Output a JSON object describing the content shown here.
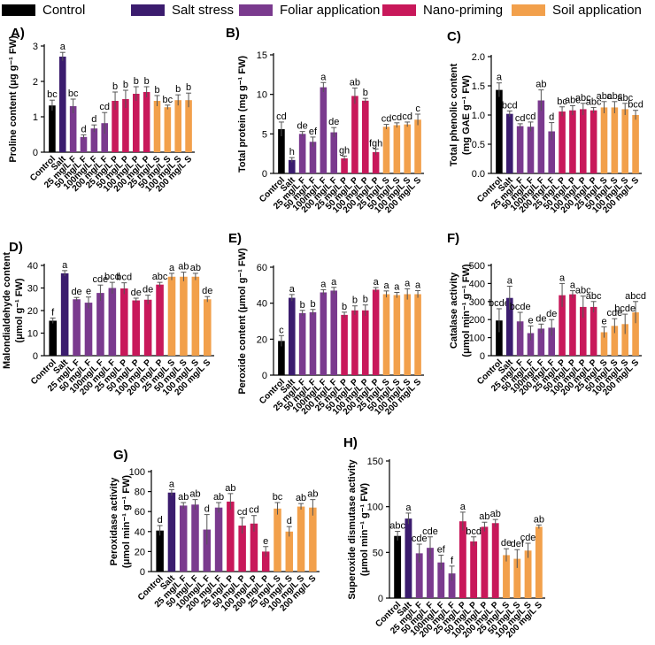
{
  "legend": [
    {
      "label": "Control",
      "color": "#000000"
    },
    {
      "label": "Salt stress",
      "color": "#3b1c6e"
    },
    {
      "label": "Foliar application",
      "color": "#7a3a8e"
    },
    {
      "label": "Nano-priming",
      "color": "#c8185a"
    },
    {
      "label": "Soil application",
      "color": "#f2a04b"
    }
  ],
  "categories": [
    "Control",
    "Salt",
    "25 mg/L F",
    "50 mg/L F",
    "100mg/L F",
    "200 mg/L F",
    "25 mg/L P",
    "50 mg/L P",
    "100 mg/L P",
    "200 mg/L P",
    "25 mg/L S",
    "50 mg/L S",
    "100 mg/L S",
    "200 mg/L S"
  ],
  "colors": [
    "#000000",
    "#3b1c6e",
    "#7a3a8e",
    "#7a3a8e",
    "#7a3a8e",
    "#7a3a8e",
    "#c8185a",
    "#c8185a",
    "#c8185a",
    "#c8185a",
    "#f2a04b",
    "#f2a04b",
    "#f2a04b",
    "#f2a04b"
  ],
  "chart_data": [
    {
      "type": "bar",
      "panel": "A)",
      "ylabel_lines": [
        "Proline content (μg g⁻¹ FW)"
      ],
      "ylim": [
        0,
        3
      ],
      "ticks": [
        0,
        1,
        2,
        3
      ],
      "categories": [
        "Control",
        "Salt",
        "25 mg/L F",
        "50 mg/L F",
        "100mg/L F",
        "200 mg/L F",
        "25 mg/L P",
        "50 mg/L P",
        "100 mg/L P",
        "200 mg/L P",
        "25 mg/L S",
        "50 mg/L S",
        "100 mg/L S",
        "200 mg/L S"
      ],
      "values": [
        1.32,
        2.7,
        1.3,
        0.43,
        0.67,
        0.82,
        1.45,
        1.5,
        1.65,
        1.7,
        1.45,
        1.27,
        1.47,
        1.47
      ],
      "errors": [
        0.15,
        0.12,
        0.2,
        0.06,
        0.1,
        0.3,
        0.25,
        0.25,
        0.2,
        0.15,
        0.15,
        0.06,
        0.15,
        0.2
      ],
      "letters": [
        "bc",
        "a",
        "bc",
        "d",
        "d",
        "cd",
        "b",
        "b",
        "b",
        "b",
        "b",
        "bc",
        "b",
        "b"
      ]
    },
    {
      "type": "bar",
      "panel": "B)",
      "ylabel_lines": [
        "Total protein (mg g⁻¹ FW)"
      ],
      "ylim": [
        0,
        15
      ],
      "ticks": [
        0,
        5,
        10,
        15
      ],
      "categories": [
        "Control",
        "Salt",
        "25 mg/L F",
        "50 mg/L F",
        "100mg/L F",
        "200 mg/L F",
        "25 mg/L P",
        "50 mg/L P",
        "100 mg/L P",
        "200 mg/L P",
        "25 mg/L S",
        "50 mg/L S",
        "100 mg/L S",
        "200 mg/L S"
      ],
      "values": [
        5.6,
        1.7,
        5.0,
        4.0,
        10.9,
        5.2,
        1.9,
        9.8,
        9.2,
        2.7,
        5.9,
        6.1,
        6.2,
        6.8
      ],
      "errors": [
        0.9,
        0.3,
        0.3,
        0.6,
        0.6,
        0.6,
        0.3,
        1.0,
        0.3,
        0.4,
        0.3,
        0.3,
        0.3,
        0.7
      ],
      "letters": [
        "cd",
        "h",
        "de",
        "ef",
        "a",
        "de",
        "gh",
        "ab",
        "b",
        "fgh",
        "cd",
        "cd",
        "cd",
        "c"
      ]
    },
    {
      "type": "bar",
      "panel": "C)",
      "ylabel_lines": [
        "Total phenolic content",
        "(mg GAE g⁻¹ FW)"
      ],
      "ylim": [
        0,
        2
      ],
      "ticks": [
        0,
        0.5,
        1.0,
        1.5,
        2.0
      ],
      "tick_labels": [
        "0.0",
        "0.5",
        "1.0",
        "1.5",
        "2.0"
      ],
      "categories": [
        "Control",
        "Salt",
        "25 mg/L F",
        "50 mg/L F",
        "100mg/L F",
        "200 mg/L F",
        "25 mg/L P",
        "50 mg/L P",
        "100 mg/L P",
        "200 mg/L P",
        "25 mg/L S",
        "50 mg/L S",
        "100 mg/L S",
        "200 mg/L S"
      ],
      "values": [
        1.43,
        1.02,
        0.81,
        0.8,
        1.25,
        0.72,
        1.06,
        1.08,
        1.1,
        1.08,
        1.13,
        1.13,
        1.1,
        1.0
      ],
      "errors": [
        0.12,
        0.05,
        0.04,
        0.08,
        0.18,
        0.15,
        0.08,
        0.08,
        0.1,
        0.05,
        0.1,
        0.1,
        0.1,
        0.08
      ],
      "letters": [
        "a",
        "bcd",
        "cd",
        "cd",
        "ab",
        "d",
        "bc",
        "abc",
        "abc",
        "abc",
        "abc",
        "abc",
        "abc",
        "bcd"
      ]
    },
    {
      "type": "bar",
      "panel": "D)",
      "ylabel_lines": [
        "Malondialdehyde content",
        "(μmol g⁻¹ FW)"
      ],
      "ylim": [
        0,
        40
      ],
      "ticks": [
        0,
        10,
        20,
        30,
        40
      ],
      "categories": [
        "Control",
        "Salt",
        "25 mg/L F",
        "50 mg/L F",
        "100mg/L F",
        "200 mg/L F",
        "25 mg/L P",
        "50 mg/L P",
        "100 mg/L P",
        "200 mg/L P",
        "25 mg/L S",
        "50 mg/L S",
        "100 mg/L S",
        "200 mg/L S"
      ],
      "values": [
        15.5,
        36.5,
        25.0,
        23.5,
        27.8,
        30.0,
        29.8,
        24.5,
        24.8,
        31.5,
        35.0,
        35.0,
        35.0,
        25.0
      ],
      "errors": [
        1.2,
        1.2,
        0.8,
        2.5,
        3.5,
        2.5,
        2.5,
        1.0,
        2.0,
        1.0,
        1.5,
        2.0,
        1.5,
        1.2
      ],
      "letters": [
        "f",
        "a",
        "de",
        "e",
        "cde",
        "bcd",
        "bcd",
        "de",
        "de",
        "abc",
        "a",
        "ab",
        "ab",
        "de"
      ]
    },
    {
      "type": "bar",
      "panel": "E)",
      "ylabel_lines": [
        "Peroxide content (μmol g⁻¹ FW)"
      ],
      "ylim": [
        0,
        60
      ],
      "ticks": [
        0,
        20,
        40,
        60
      ],
      "categories": [
        "Control",
        "Salt",
        "25 mg/L F",
        "50 mg/L F",
        "100mg/L F",
        "200 mg/L F",
        "25 mg/L P",
        "50 mg/L P",
        "100 mg/L P",
        "200 mg/L P",
        "25 mg/L S",
        "50 mg/L S",
        "100 mg/L S",
        "200 mg/L S"
      ],
      "values": [
        19.0,
        43.0,
        34.5,
        35.0,
        46.0,
        47.0,
        33.5,
        36.0,
        36.0,
        47.5,
        45.0,
        44.5,
        45.0,
        45.0
      ],
      "errors": [
        3.0,
        1.8,
        1.5,
        1.5,
        1.5,
        1.8,
        1.5,
        2.5,
        3.0,
        1.2,
        1.8,
        1.5,
        3.0,
        2.0
      ],
      "letters": [
        "c",
        "a",
        "b",
        "b",
        "a",
        "a",
        "b",
        "b",
        "b",
        "a",
        "a",
        "a",
        "a",
        "a"
      ]
    },
    {
      "type": "bar",
      "panel": "F)",
      "ylabel_lines": [
        "Catalase activity",
        "(μmol min⁻¹ g⁻¹ FW)"
      ],
      "ylim": [
        0,
        500
      ],
      "ticks": [
        0,
        100,
        200,
        300,
        400,
        500
      ],
      "categories": [
        "Control",
        "Salt",
        "25 mg/L F",
        "50 mg/L F",
        "100mg/L F",
        "200 mg/L F",
        "25 mg/L P",
        "50 mg/L P",
        "100 mg/L P",
        "200 mg/L P",
        "25 mg/L S",
        "50 mg/L S",
        "100 mg/L S",
        "200 mg/L S"
      ],
      "values": [
        195,
        320,
        190,
        125,
        150,
        155,
        335,
        340,
        270,
        270,
        130,
        165,
        175,
        240
      ],
      "errors": [
        65,
        65,
        50,
        40,
        25,
        45,
        65,
        20,
        60,
        30,
        30,
        40,
        55,
        60
      ],
      "letters": [
        "bcde",
        "a",
        "bcde",
        "e",
        "de",
        "de",
        "a",
        "a",
        "abc",
        "abc",
        "e",
        "cde",
        "bcde",
        "abcd"
      ]
    },
    {
      "type": "bar",
      "panel": "G)",
      "ylabel_lines": [
        "Peroxidase activity",
        "(μmol min⁻¹ g⁻¹ FW)"
      ],
      "ylim": [
        0,
        100
      ],
      "ticks": [
        0,
        20,
        40,
        60,
        80,
        100
      ],
      "categories": [
        "Control",
        "Salt",
        "25 mg/L F",
        "50 mg/L F",
        "100mg/L F",
        "200 mg/L F",
        "25 mg/L P",
        "50 mg/L P",
        "100 mg/L P",
        "200 mg/L P",
        "25 mg/L S",
        "50 mg/L S",
        "100 mg/L S",
        "200 mg/L S"
      ],
      "values": [
        41,
        79,
        66,
        67,
        42,
        64,
        70,
        46,
        48,
        20,
        63,
        40,
        65,
        64
      ],
      "errors": [
        5,
        3,
        3,
        5,
        15,
        5,
        8,
        8,
        8,
        5,
        6,
        5,
        3,
        8
      ],
      "letters": [
        "d",
        "a",
        "ab",
        "ab",
        "d",
        "ab",
        "ab",
        "cd",
        "cd",
        "e",
        "bc",
        "d",
        "ab",
        "ab"
      ]
    },
    {
      "type": "bar",
      "panel": "H)",
      "ylabel_lines": [
        "Superoxide dismutase activity",
        "(μmol min⁻¹ g⁻¹ FW)"
      ],
      "ylim": [
        0,
        150
      ],
      "ticks": [
        0,
        50,
        100,
        150
      ],
      "categories": [
        "Control",
        "Salt",
        "25 mg/L F",
        "50 mg/L F",
        "100mg/L F",
        "200 mg/L F",
        "25 mg/L P",
        "50 mg/L P",
        "100 mg/L P",
        "200 mg/L P",
        "25 mg/L S",
        "50 mg/L S",
        "100 mg/L S",
        "200 mg/L S"
      ],
      "values": [
        68,
        87,
        49,
        55,
        39,
        27,
        84,
        62,
        78,
        82,
        47,
        43,
        52,
        78
      ],
      "errors": [
        5,
        6,
        10,
        12,
        8,
        8,
        10,
        5,
        5,
        4,
        7,
        10,
        8,
        2
      ],
      "letters": [
        "abc",
        "a",
        "cde",
        "cde",
        "ef",
        "f",
        "a",
        "bcd",
        "ab",
        "ab",
        "de",
        "def",
        "cde",
        "ab"
      ]
    }
  ]
}
